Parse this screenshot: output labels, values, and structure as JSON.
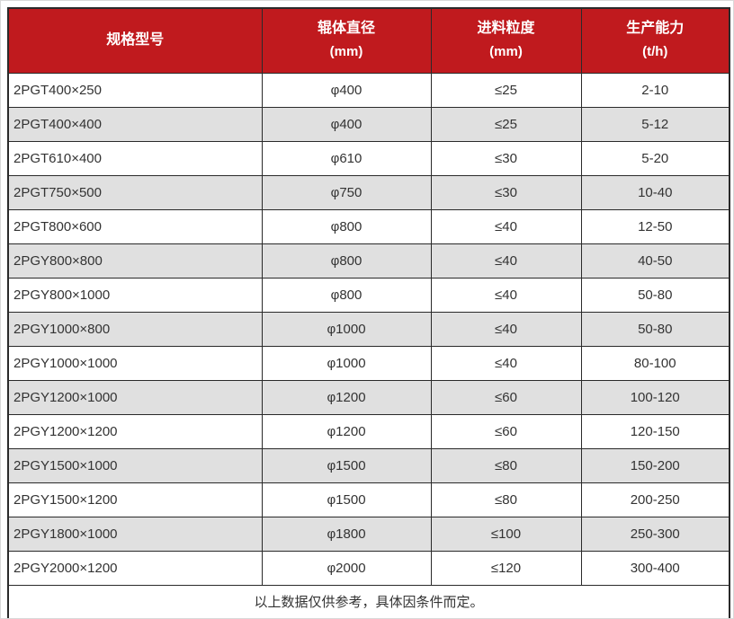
{
  "colors": {
    "header_bg": "#c01a1e",
    "header_text": "#ffffff",
    "row_bg": "#ffffff",
    "row_alt_bg": "#e0e0e0",
    "border": "#2a2a2a",
    "text": "#333333"
  },
  "table": {
    "columns": [
      {
        "title": "规格型号",
        "unit": ""
      },
      {
        "title": "辊体直径",
        "unit": "(mm)"
      },
      {
        "title": "进料粒度",
        "unit": "(mm)"
      },
      {
        "title": "生产能力",
        "unit": "(t/h)"
      }
    ],
    "rows": [
      {
        "model": "2PGT400×250",
        "diameter": "φ400",
        "feed": "≤25",
        "capacity": "2-10"
      },
      {
        "model": "2PGT400×400",
        "diameter": "φ400",
        "feed": "≤25",
        "capacity": "5-12"
      },
      {
        "model": "2PGT610×400",
        "diameter": "φ610",
        "feed": "≤30",
        "capacity": "5-20"
      },
      {
        "model": "2PGT750×500",
        "diameter": "φ750",
        "feed": "≤30",
        "capacity": "10-40"
      },
      {
        "model": "2PGT800×600",
        "diameter": "φ800",
        "feed": "≤40",
        "capacity": "12-50"
      },
      {
        "model": "2PGY800×800",
        "diameter": "φ800",
        "feed": "≤40",
        "capacity": "40-50"
      },
      {
        "model": "2PGY800×1000",
        "diameter": "φ800",
        "feed": "≤40",
        "capacity": "50-80"
      },
      {
        "model": "2PGY1000×800",
        "diameter": "φ1000",
        "feed": "≤40",
        "capacity": "50-80"
      },
      {
        "model": "2PGY1000×1000",
        "diameter": "φ1000",
        "feed": "≤40",
        "capacity": "80-100"
      },
      {
        "model": "2PGY1200×1000",
        "diameter": "φ1200",
        "feed": "≤60",
        "capacity": "100-120"
      },
      {
        "model": "2PGY1200×1200",
        "diameter": "φ1200",
        "feed": "≤60",
        "capacity": "120-150"
      },
      {
        "model": "2PGY1500×1000",
        "diameter": "φ1500",
        "feed": "≤80",
        "capacity": "150-200"
      },
      {
        "model": "2PGY1500×1200",
        "diameter": "φ1500",
        "feed": "≤80",
        "capacity": "200-250"
      },
      {
        "model": "2PGY1800×1000",
        "diameter": "φ1800",
        "feed": "≤100",
        "capacity": "250-300"
      },
      {
        "model": "2PGY2000×1200",
        "diameter": "φ2000",
        "feed": "≤120",
        "capacity": "300-400"
      }
    ],
    "footnote": "以上数据仅供参考，具体因条件而定。"
  }
}
